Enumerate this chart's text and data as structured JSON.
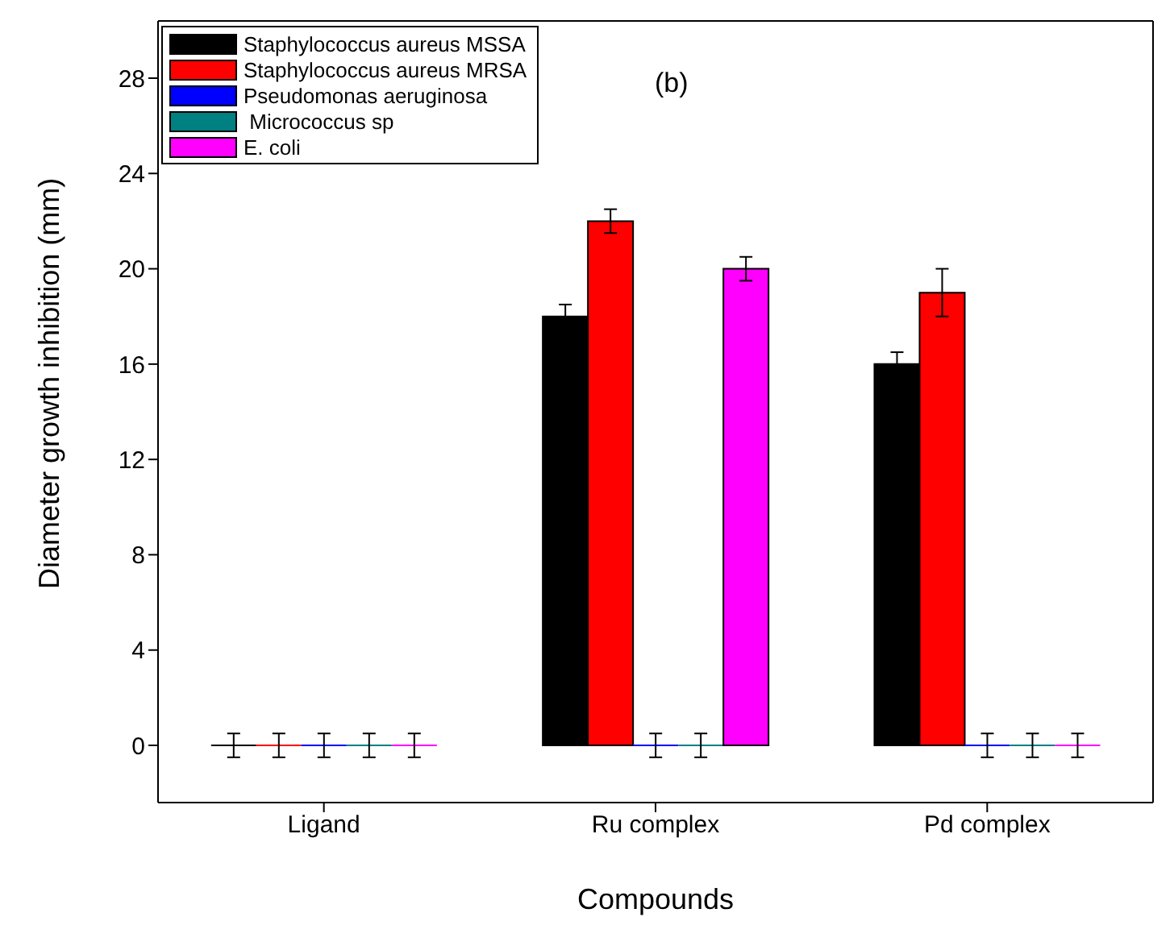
{
  "chart_data": {
    "type": "bar",
    "xlabel": "Compounds",
    "ylabel": "Diameter growth inhibition (mm)",
    "categories": [
      "Ligand",
      "Ru complex",
      "Pd complex"
    ],
    "series": [
      {
        "name": "Staphylococcus aureus MSSA",
        "color": "#000000",
        "values": [
          0,
          18,
          16
        ],
        "errors": [
          0.5,
          0.5,
          0.5
        ]
      },
      {
        "name": "Staphylococcus aureus MRSA",
        "color": "#ff0000",
        "values": [
          0,
          22,
          19
        ],
        "errors": [
          0.5,
          0.5,
          1
        ]
      },
      {
        "name": "Pseudomonas aeruginosa",
        "color": "#0000ff",
        "values": [
          0,
          0,
          0
        ],
        "errors": [
          0.5,
          0.5,
          0.5
        ]
      },
      {
        "name": " Micrococcus sp",
        "color": "#008080",
        "values": [
          0,
          0,
          0
        ],
        "errors": [
          0.5,
          0.5,
          0.5
        ]
      },
      {
        "name": "E. coli",
        "color": "#ff00ff",
        "values": [
          0,
          20,
          0
        ],
        "errors": [
          0.5,
          0.5,
          0.5
        ]
      }
    ],
    "ylim": [
      -2.4,
      30.4
    ],
    "yticks": [
      0,
      4,
      8,
      12,
      16,
      20,
      24,
      28
    ],
    "grid": false,
    "legend": "top left",
    "annotations": [
      "(b)"
    ]
  }
}
